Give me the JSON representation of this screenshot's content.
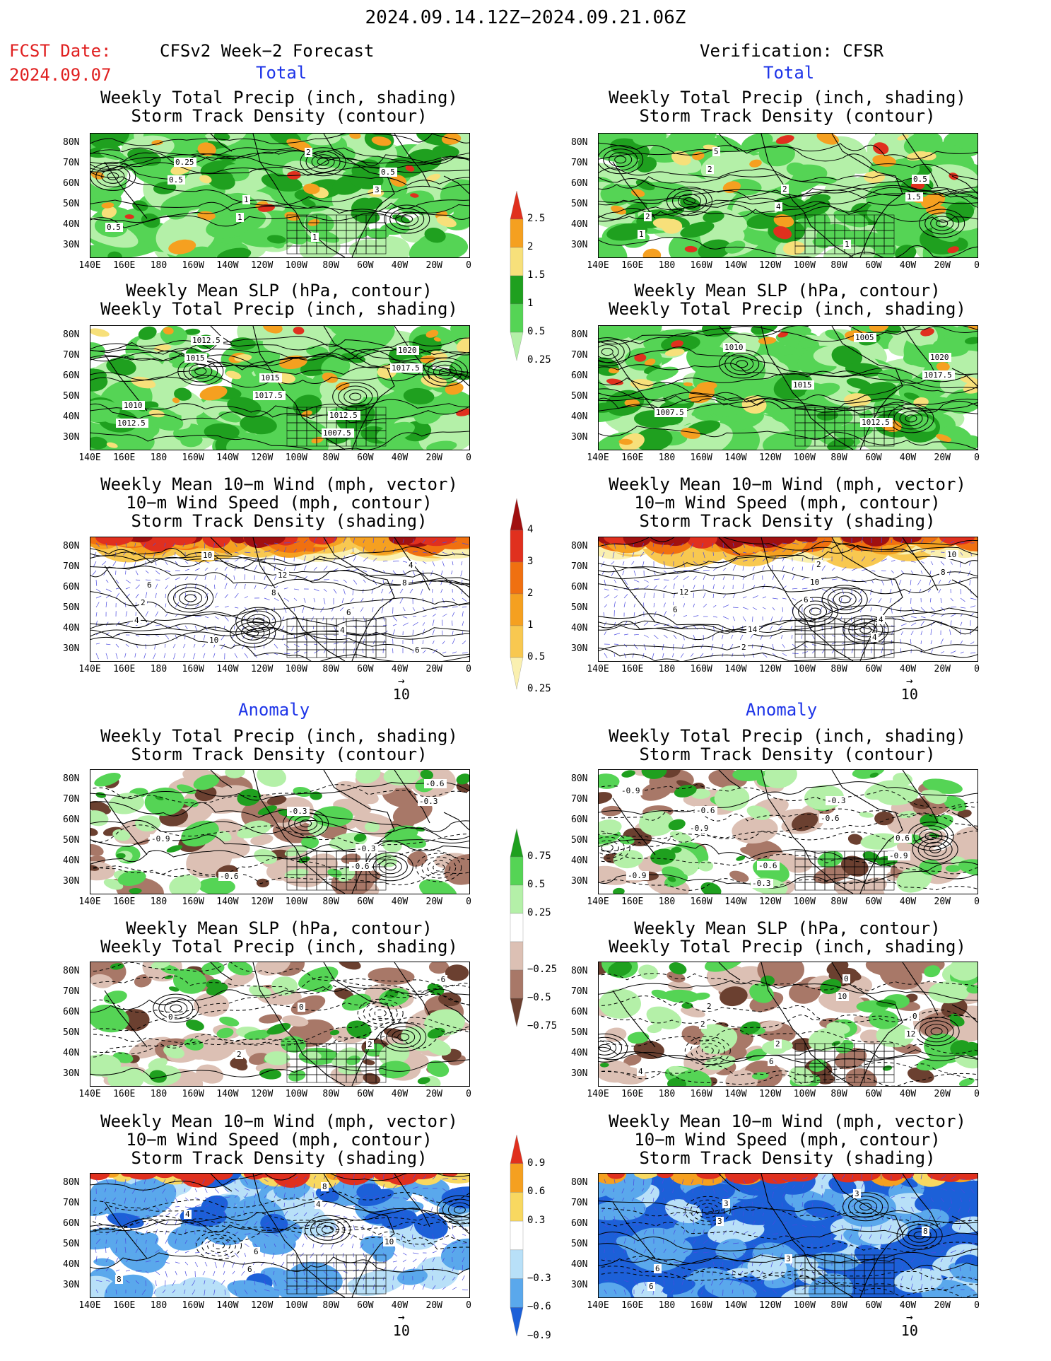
{
  "header": {
    "date_range": "2024.09.14.12Z−2024.09.21.06Z",
    "fcst_label": "FCST Date:",
    "fcst_date": "2024.09.07",
    "left_title": "CFSv2 Week−2 Forecast",
    "right_title": "Verification: CFSR"
  },
  "sections": {
    "total": "Total",
    "anomaly": "Anomaly"
  },
  "panel_titles": {
    "precip_storm": [
      "Weekly Total Precip (inch, shading)",
      "Storm Track Density (contour)"
    ],
    "slp_precip": [
      "Weekly Mean SLP (hPa, contour)",
      "Weekly Total Precip (inch, shading)"
    ],
    "wind": [
      "Weekly Mean 10−m Wind (mph, vector)",
      "10−m Wind Speed (mph, contour)",
      "Storm Track Density (shading)"
    ]
  },
  "axes": {
    "lat_labels": [
      "80N",
      "70N",
      "60N",
      "50N",
      "40N",
      "30N"
    ],
    "lon_labels": [
      "140E",
      "160E",
      "180",
      "160W",
      "140W",
      "120W",
      "100W",
      "80W",
      "60W",
      "40W",
      "20W",
      "0"
    ]
  },
  "vector_ref": "10",
  "colorbars": {
    "precip_total": {
      "labels": [
        "2.5",
        "2",
        "1.5",
        "1",
        "0.5",
        "0.25"
      ],
      "colors": [
        "#e0301e",
        "#f5a020",
        "#f7e07a",
        "#1fa01f",
        "#55d455",
        "#b4f0a8"
      ]
    },
    "storm_total": {
      "labels": [
        "4",
        "3",
        "2",
        "1",
        "0.5",
        "0.25"
      ],
      "colors": [
        "#a01010",
        "#e0301e",
        "#f07010",
        "#f5a020",
        "#f8c850",
        "#faf0b0"
      ]
    },
    "precip_anom": {
      "labels": [
        "0.75",
        "0.5",
        "0.25",
        "−0.25",
        "−0.5",
        "−0.75"
      ],
      "colors": [
        "#1fa01f",
        "#55d455",
        "#b4f0a8",
        "#ffffff",
        "#dcc0b4",
        "#a87868",
        "#6b4030"
      ]
    },
    "storm_anom": {
      "labels": [
        "0.9",
        "0.6",
        "0.3",
        "−0.3",
        "−0.6",
        "−0.9"
      ],
      "colors": [
        "#e0301e",
        "#f5a020",
        "#f8d860",
        "#ffffff",
        "#b8e0f8",
        "#5aa8ec",
        "#1c60d8"
      ]
    }
  },
  "contour_labels": {
    "p1": [
      "0.5",
      "1",
      "2",
      "3",
      "0.5",
      "0.25",
      "1",
      "1",
      "0.5"
    ],
    "p2": [
      "1012.5",
      "1015",
      "1017.5",
      "1007.5",
      "1017.5",
      "1010",
      "1012.5",
      "1015",
      "1012.5",
      "1020"
    ],
    "p3": [
      "8",
      "4",
      "10",
      "8",
      "4",
      "4",
      "2",
      "10",
      "12",
      "6",
      "6",
      "6"
    ],
    "p4": [
      "-0.6",
      "-0.3",
      "-0.9",
      "-0.6",
      "-0.3",
      "-0.3",
      "-0.6"
    ],
    "p5": [
      "0",
      "2",
      "-6",
      "0",
      "2"
    ],
    "p6": [
      "6",
      "4",
      "10",
      "8",
      "4",
      "6",
      "8"
    ],
    "v1": [
      "1.5",
      "1",
      "2",
      "4",
      "1",
      "0.5",
      "2",
      "5",
      "2"
    ],
    "v2": [
      "1005",
      "1017.5",
      "1007.5",
      "1010",
      "1015",
      "1012.5",
      "1020"
    ],
    "v3": [
      "6",
      "4",
      "8",
      "6",
      "2",
      "10",
      "4",
      "10",
      "12",
      "14",
      "2"
    ],
    "v4": [
      "-0.3",
      "-0.6",
      "-0.9",
      "-0.9",
      "-0.9",
      "-0.6",
      "-0.3",
      "0.6",
      "-0.9",
      "-0.6"
    ],
    "v5": [
      "2",
      "6",
      "10",
      "12",
      "4",
      "2",
      "2",
      "0",
      "0"
    ],
    "v6": [
      "6",
      "3",
      "3",
      "3",
      "8",
      "6",
      "3"
    ]
  }
}
